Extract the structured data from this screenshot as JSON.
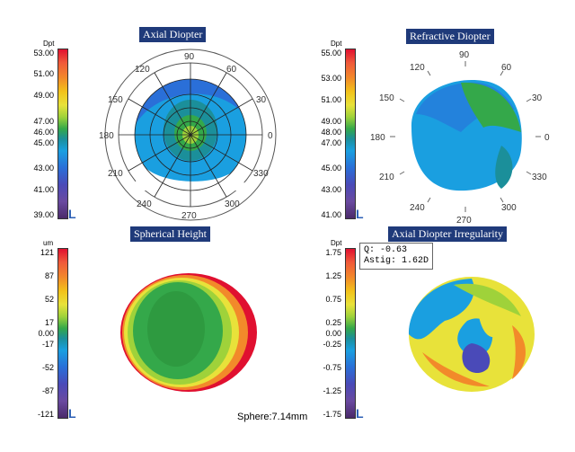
{
  "panels": {
    "axial": {
      "title": "Axial Diopter",
      "scale": {
        "unit": "Dpt",
        "ticks": [
          "53.00",
          "51.00",
          "49.00",
          "47.00",
          "46.00",
          "45.00",
          "43.00",
          "41.00",
          "39.00"
        ],
        "letter": "L"
      },
      "angles": [
        "90",
        "60",
        "30",
        "0",
        "330",
        "300",
        "270",
        "240",
        "210",
        "180",
        "150",
        "120"
      ]
    },
    "refractive": {
      "title": "Refractive Diopter",
      "scale": {
        "unit": "Dpt",
        "ticks": [
          "55.00",
          "53.00",
          "51.00",
          "49.00",
          "48.00",
          "47.00",
          "45.00",
          "43.00",
          "41.00"
        ],
        "letter": "L"
      },
      "angles": [
        "90",
        "60",
        "30",
        "0",
        "330",
        "300",
        "270",
        "240",
        "210",
        "180",
        "150",
        "120"
      ]
    },
    "spherical": {
      "title": "Spherical Height",
      "scale": {
        "unit": "um",
        "ticks": [
          "121",
          "87",
          "52",
          "17",
          "0.00",
          "-17",
          "-52",
          "-87",
          "-121"
        ],
        "letter": "L"
      },
      "footer": "Sphere:7.14mm"
    },
    "irregularity": {
      "title": "Axial Diopter Irregularity",
      "scale": {
        "unit": "Dpt",
        "ticks": [
          "1.75",
          "1.25",
          "0.75",
          "0.25",
          "0.00",
          "-0.25",
          "-0.75",
          "-1.25",
          "-1.75"
        ],
        "letter": "L"
      },
      "info": {
        "q": "Q: -0.63",
        "astig": "Astig: 1.62D"
      }
    }
  },
  "colors": {
    "title_bg": "#1f3a7a",
    "scale": [
      "#e01030",
      "#f05a3a",
      "#f28a2a",
      "#f2c21a",
      "#e8e23a",
      "#9fd23a",
      "#34a84a",
      "#1b8f9a",
      "#1a9fe0",
      "#2a6fd8",
      "#4a4ab8",
      "#6a4aa0",
      "#4a2a6a"
    ]
  }
}
